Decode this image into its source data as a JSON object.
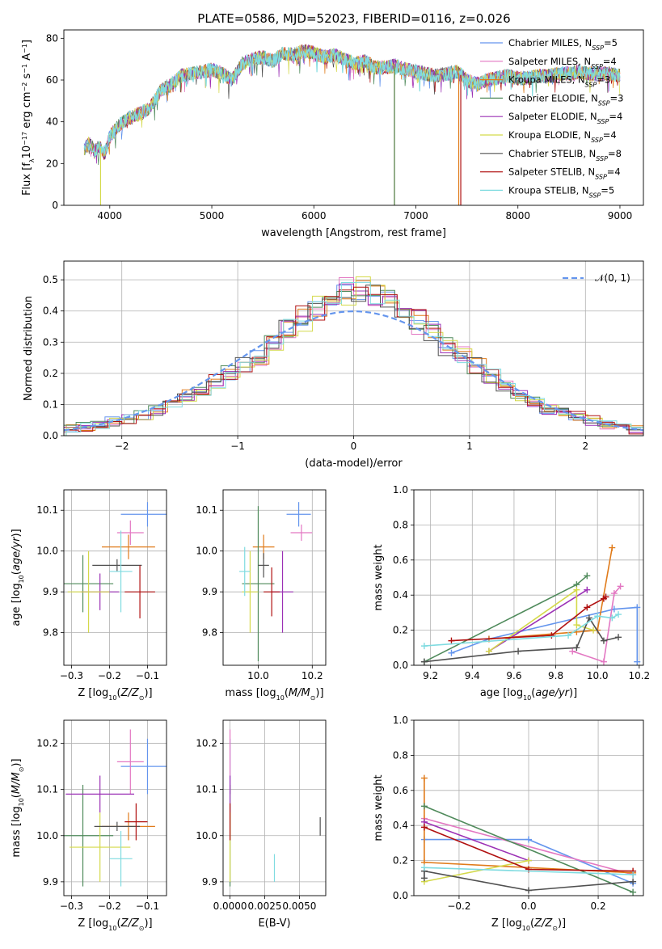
{
  "title": "PLATE=0586, MJD=52023, FIBERID=0116, z=0.026",
  "colors": [
    "#6495ed",
    "#e377c2",
    "#e07b1a",
    "#4f8a5b",
    "#9b30b5",
    "#d4d94a",
    "#505050",
    "#b01010",
    "#7fdbe0"
  ],
  "chart_data": [
    {
      "type": "line",
      "title": "PLATE=0586, MJD=52023, FIBERID=0116, z=0.026",
      "xlabel": "wavelength [Angstrom, rest frame]",
      "ylabel": "Flux [f_λ10^-17 erg cm^-2 s^-1 A^-1]",
      "xlim": [
        3550,
        9230
      ],
      "ylim": [
        0,
        84
      ],
      "xticks": [
        4000,
        5000,
        6000,
        7000,
        8000,
        9000
      ],
      "yticks": [
        0,
        20,
        40,
        60,
        80
      ],
      "grid": false,
      "legend_position": "top-right",
      "legend": [
        {
          "pre": "Chabrier MILES, N",
          "sub": "SSP",
          "post": "=5"
        },
        {
          "pre": "Salpeter MILES, N",
          "sub": "SSP",
          "post": "=4"
        },
        {
          "pre": "Kroupa MILES, N",
          "sub": "SSP",
          "post": "=3"
        },
        {
          "pre": "Chabrier ELODIE, N",
          "sub": "SSP",
          "post": "=3"
        },
        {
          "pre": "Salpeter ELODIE, N",
          "sub": "SSP",
          "post": "=4"
        },
        {
          "pre": "Kroupa ELODIE, N",
          "sub": "SSP",
          "post": "=4"
        },
        {
          "pre": "Chabrier STELIB, N",
          "sub": "SSP",
          "post": "=8"
        },
        {
          "pre": "Salpeter STELIB, N",
          "sub": "SSP",
          "post": "=4"
        },
        {
          "pre": "Kroupa STELIB, N",
          "sub": "SSP",
          "post": "=5"
        }
      ],
      "spectrum": {
        "x": [
          3750,
          3800,
          3850,
          3900,
          3950,
          4000,
          4100,
          4200,
          4300,
          4400,
          4500,
          4600,
          4700,
          4800,
          4900,
          5000,
          5100,
          5200,
          5300,
          5400,
          5500,
          5600,
          5700,
          5800,
          5900,
          6000,
          6100,
          6200,
          6300,
          6400,
          6500,
          6600,
          6700,
          6800,
          6900,
          7000,
          7100,
          7200,
          7300,
          7400,
          7500,
          7600,
          7700,
          7800,
          7900,
          8000,
          8100,
          8200,
          8300,
          8400,
          8500,
          8600,
          8700,
          8800,
          8900,
          9000
        ],
        "y": [
          27,
          30,
          26,
          28,
          25,
          33,
          39,
          42,
          44,
          47,
          55,
          58,
          62,
          63,
          64,
          65,
          63,
          60,
          68,
          70,
          71,
          69,
          73,
          72,
          74,
          73,
          71,
          72,
          70,
          68,
          69,
          66,
          66,
          67,
          65,
          64,
          63,
          62,
          63,
          64,
          60,
          58,
          60,
          61,
          62,
          61,
          61,
          62,
          62,
          63,
          63,
          64,
          63,
          63,
          63,
          62
        ]
      },
      "drops": [
        {
          "series": 5,
          "x": 3910
        },
        {
          "series": 2,
          "x": 6790
        },
        {
          "series": 3,
          "x": 6790
        },
        {
          "series": 2,
          "x": 7420
        },
        {
          "series": 7,
          "x": 7440
        }
      ]
    },
    {
      "type": "histogram",
      "xlabel": "(data-model)/error",
      "ylabel": "Normed distribution",
      "xlim": [
        -2.5,
        2.5
      ],
      "ylim": [
        0,
        0.56
      ],
      "xticks": [
        -2,
        -1,
        0,
        1,
        2
      ],
      "yticks": [
        0,
        0.1,
        0.2,
        0.3,
        0.4,
        0.5
      ],
      "grid": true,
      "legend_position": "top-right",
      "reference_label": "𝒩(0, 1)",
      "bin_edges": [
        -2.5,
        -2.375,
        -2.25,
        -2.125,
        -2.0,
        -1.875,
        -1.75,
        -1.625,
        -1.5,
        -1.375,
        -1.25,
        -1.125,
        -1.0,
        -0.875,
        -0.75,
        -0.625,
        -0.5,
        -0.375,
        -0.25,
        -0.125,
        0.0,
        0.125,
        0.25,
        0.375,
        0.5,
        0.625,
        0.75,
        0.875,
        1.0,
        1.125,
        1.25,
        1.375,
        1.5,
        1.625,
        1.75,
        1.875,
        2.0,
        2.125,
        2.25,
        2.375,
        2.5
      ],
      "base_density": [
        0.025,
        0.03,
        0.035,
        0.045,
        0.055,
        0.065,
        0.08,
        0.1,
        0.125,
        0.14,
        0.17,
        0.2,
        0.23,
        0.26,
        0.3,
        0.34,
        0.37,
        0.41,
        0.43,
        0.46,
        0.47,
        0.46,
        0.44,
        0.41,
        0.37,
        0.33,
        0.29,
        0.26,
        0.23,
        0.19,
        0.16,
        0.13,
        0.11,
        0.09,
        0.075,
        0.06,
        0.045,
        0.035,
        0.03,
        0.02
      ]
    },
    {
      "type": "scatter",
      "xlabel": "Z [log10(Z/Z_sun)]",
      "ylabel": "age [log10(age/yr)]",
      "xlim": [
        -0.32,
        -0.05
      ],
      "ylim": [
        9.72,
        10.15
      ],
      "xticks": [
        -0.3,
        -0.2,
        -0.1
      ],
      "yticks": [
        9.8,
        9.9,
        10.0,
        10.1
      ],
      "grid": true,
      "points": [
        {
          "x": -0.1,
          "y": 10.09,
          "ex": 0.07,
          "ey": 0.03
        },
        {
          "x": -0.145,
          "y": 10.045,
          "ex": 0.035,
          "ey": 0.03
        },
        {
          "x": -0.15,
          "y": 10.01,
          "ex": 0.07,
          "ey": 0.03
        },
        {
          "x": -0.27,
          "y": 9.92,
          "ex": 0.08,
          "ey": 0.07
        },
        {
          "x": -0.225,
          "y": 9.9,
          "ex": 0.05,
          "ey": 0.045
        },
        {
          "x": -0.255,
          "y": 9.9,
          "ex": 0.055,
          "ey": 0.1
        },
        {
          "x": -0.18,
          "y": 9.965,
          "ex": 0.065,
          "ey": 0.015
        },
        {
          "x": -0.12,
          "y": 9.9,
          "ex": 0.04,
          "ey": 0.065
        },
        {
          "x": -0.17,
          "y": 9.95,
          "ex": 0.03,
          "ey": 0.1
        }
      ]
    },
    {
      "type": "scatter",
      "xlabel": "mass [log10(M/M_sun)]",
      "ylabel": "",
      "xlim": [
        9.87,
        10.25
      ],
      "ylim": [
        9.72,
        10.15
      ],
      "xticks": [
        10.0,
        10.2
      ],
      "yticks": [
        9.8,
        9.9,
        10.0,
        10.1
      ],
      "grid": true,
      "points": [
        {
          "x": 10.15,
          "y": 10.09,
          "ex": 0.045,
          "ey": 0.03
        },
        {
          "x": 10.16,
          "y": 10.045,
          "ex": 0.04,
          "ey": 0.02
        },
        {
          "x": 10.02,
          "y": 10.01,
          "ex": 0.04,
          "ey": 0.03
        },
        {
          "x": 10.0,
          "y": 9.92,
          "ex": 0.06,
          "ey": 0.19
        },
        {
          "x": 10.09,
          "y": 9.9,
          "ex": 0.04,
          "ey": 0.1
        },
        {
          "x": 9.97,
          "y": 9.9,
          "ex": 0.03,
          "ey": 0.1
        },
        {
          "x": 10.02,
          "y": 9.965,
          "ex": 0.02,
          "ey": 0.03
        },
        {
          "x": 10.05,
          "y": 9.9,
          "ex": 0.03,
          "ey": 0.06
        },
        {
          "x": 9.95,
          "y": 9.95,
          "ex": 0.02,
          "ey": 0.06
        }
      ]
    },
    {
      "type": "line",
      "xlabel": "age [log10(age/yr)]",
      "ylabel": "mass weight",
      "xlim": [
        9.12,
        10.22
      ],
      "ylim": [
        0,
        1
      ],
      "xticks": [
        9.2,
        9.4,
        9.6,
        9.8,
        10.0,
        10.2
      ],
      "yticks": [
        0,
        0.2,
        0.4,
        0.6,
        0.8,
        1.0
      ],
      "grid": true,
      "series": [
        {
          "x": [
            9.3,
            9.48,
            10.08,
            10.19,
            10.19
          ],
          "y": [
            0.07,
            0.15,
            0.32,
            0.33,
            0.02
          ]
        },
        {
          "x": [
            9.88,
            10.03,
            10.08,
            10.11
          ],
          "y": [
            0.08,
            0.02,
            0.41,
            0.45
          ]
        },
        {
          "x": [
            9.48,
            9.9,
            10.0,
            10.07
          ],
          "y": [
            0.15,
            0.19,
            0.2,
            0.67
          ]
        },
        {
          "x": [
            9.17,
            9.9,
            9.95
          ],
          "y": [
            0.02,
            0.46,
            0.51
          ]
        },
        {
          "x": [
            9.48,
            9.95
          ],
          "y": [
            0.08,
            0.43
          ]
        },
        {
          "x": [
            9.48,
            9.9,
            9.9,
            9.98
          ],
          "y": [
            0.08,
            0.43,
            0.23,
            0.2
          ]
        },
        {
          "x": [
            9.17,
            9.62,
            9.9,
            9.96,
            10.03,
            10.1
          ],
          "y": [
            0.02,
            0.08,
            0.1,
            0.27,
            0.14,
            0.16
          ]
        },
        {
          "x": [
            9.3,
            9.78,
            9.95,
            10.03,
            10.04
          ],
          "y": [
            0.14,
            0.17,
            0.33,
            0.38,
            0.39
          ]
        },
        {
          "x": [
            9.17,
            9.86,
            10.0,
            10.07,
            10.1
          ],
          "y": [
            0.11,
            0.17,
            0.28,
            0.27,
            0.29
          ]
        }
      ]
    },
    {
      "type": "scatter",
      "xlabel": "Z [log10(Z/Z_sun)]",
      "ylabel": "mass [log10(M/M_sun)]",
      "xlim": [
        -0.32,
        -0.05
      ],
      "ylim": [
        9.87,
        10.25
      ],
      "xticks": [
        -0.3,
        -0.2,
        -0.1
      ],
      "yticks": [
        9.9,
        10.0,
        10.1,
        10.2
      ],
      "grid": true,
      "points": [
        {
          "x": -0.1,
          "y": 10.15,
          "ex": 0.07,
          "ey": 0.06
        },
        {
          "x": -0.145,
          "y": 10.16,
          "ex": 0.035,
          "ey": 0.07
        },
        {
          "x": -0.15,
          "y": 10.02,
          "ex": 0.07,
          "ey": 0.03
        },
        {
          "x": -0.27,
          "y": 10.0,
          "ex": 0.08,
          "ey": 0.11
        },
        {
          "x": -0.225,
          "y": 10.09,
          "ex": 0.09,
          "ey": 0.04
        },
        {
          "x": -0.225,
          "y": 9.975,
          "ex": 0.08,
          "ey": 0.075
        },
        {
          "x": -0.18,
          "y": 10.02,
          "ex": 0.06,
          "ey": 0.01
        },
        {
          "x": -0.13,
          "y": 10.03,
          "ex": 0.03,
          "ey": 0.04
        },
        {
          "x": -0.17,
          "y": 9.95,
          "ex": 0.03,
          "ey": 0.06
        }
      ]
    },
    {
      "type": "scatter",
      "xlabel": "E(B-V)",
      "ylabel": "",
      "xlim": [
        -0.0005,
        0.0069
      ],
      "ylim": [
        9.87,
        10.25
      ],
      "xticks": [
        0.0,
        0.0025,
        0.005
      ],
      "ytick_labels_shown": [
        9.9,
        10.0,
        10.1,
        10.2
      ],
      "yticks": [
        9.9,
        10.0,
        10.1,
        10.2
      ],
      "grid": true,
      "points": [
        {
          "x": 0.0,
          "y": 10.15,
          "ex": 0,
          "ey": 0.06
        },
        {
          "x": 0.0,
          "y": 10.16,
          "ex": 0,
          "ey": 0.07
        },
        {
          "x": 0.0,
          "y": 10.02,
          "ex": 0,
          "ey": 0.03
        },
        {
          "x": 0.0,
          "y": 10.0,
          "ex": 0,
          "ey": 0.11
        },
        {
          "x": 0.0,
          "y": 10.09,
          "ex": 0,
          "ey": 0.04
        },
        {
          "x": 0.0,
          "y": 9.975,
          "ex": 0,
          "ey": 0.075
        },
        {
          "x": 0.0065,
          "y": 10.02,
          "ex": 0,
          "ey": 0.02
        },
        {
          "x": 0.0,
          "y": 10.03,
          "ex": 0,
          "ey": 0.04
        },
        {
          "x": 0.0032,
          "y": 9.93,
          "ex": 0,
          "ey": 0.03
        }
      ]
    },
    {
      "type": "line",
      "xlabel": "Z [log10(Z/Z_sun)]",
      "ylabel": "mass weight",
      "xlim": [
        -0.33,
        0.33
      ],
      "ylim": [
        0,
        1
      ],
      "xticks": [
        -0.2,
        0.0,
        0.2
      ],
      "yticks": [
        0,
        0.2,
        0.4,
        0.6,
        0.8,
        1.0
      ],
      "grid": true,
      "series": [
        {
          "x": [
            -0.3,
            0.0,
            0.3
          ],
          "y": [
            0.32,
            0.32,
            0.07
          ]
        },
        {
          "x": [
            -0.3,
            0.3
          ],
          "y": [
            0.44,
            0.12
          ]
        },
        {
          "x": [
            -0.3,
            -0.3,
            0.3
          ],
          "y": [
            0.67,
            0.19,
            0.13
          ]
        },
        {
          "x": [
            -0.3,
            0.3
          ],
          "y": [
            0.51,
            0.02
          ]
        },
        {
          "x": [
            -0.3,
            0.0
          ],
          "y": [
            0.42,
            0.2
          ]
        },
        {
          "x": [
            -0.3,
            0.0
          ],
          "y": [
            0.08,
            0.2
          ]
        },
        {
          "x": [
            -0.3,
            -0.3,
            0.0,
            0.3
          ],
          "y": [
            0.1,
            0.14,
            0.03,
            0.08
          ]
        },
        {
          "x": [
            -0.3,
            0.0,
            0.3
          ],
          "y": [
            0.39,
            0.15,
            0.14
          ]
        },
        {
          "x": [
            -0.3,
            0.3
          ],
          "y": [
            0.16,
            0.12
          ]
        }
      ]
    }
  ],
  "panels_text": {
    "legend_ref_label": "𝒩(0, 1)"
  }
}
